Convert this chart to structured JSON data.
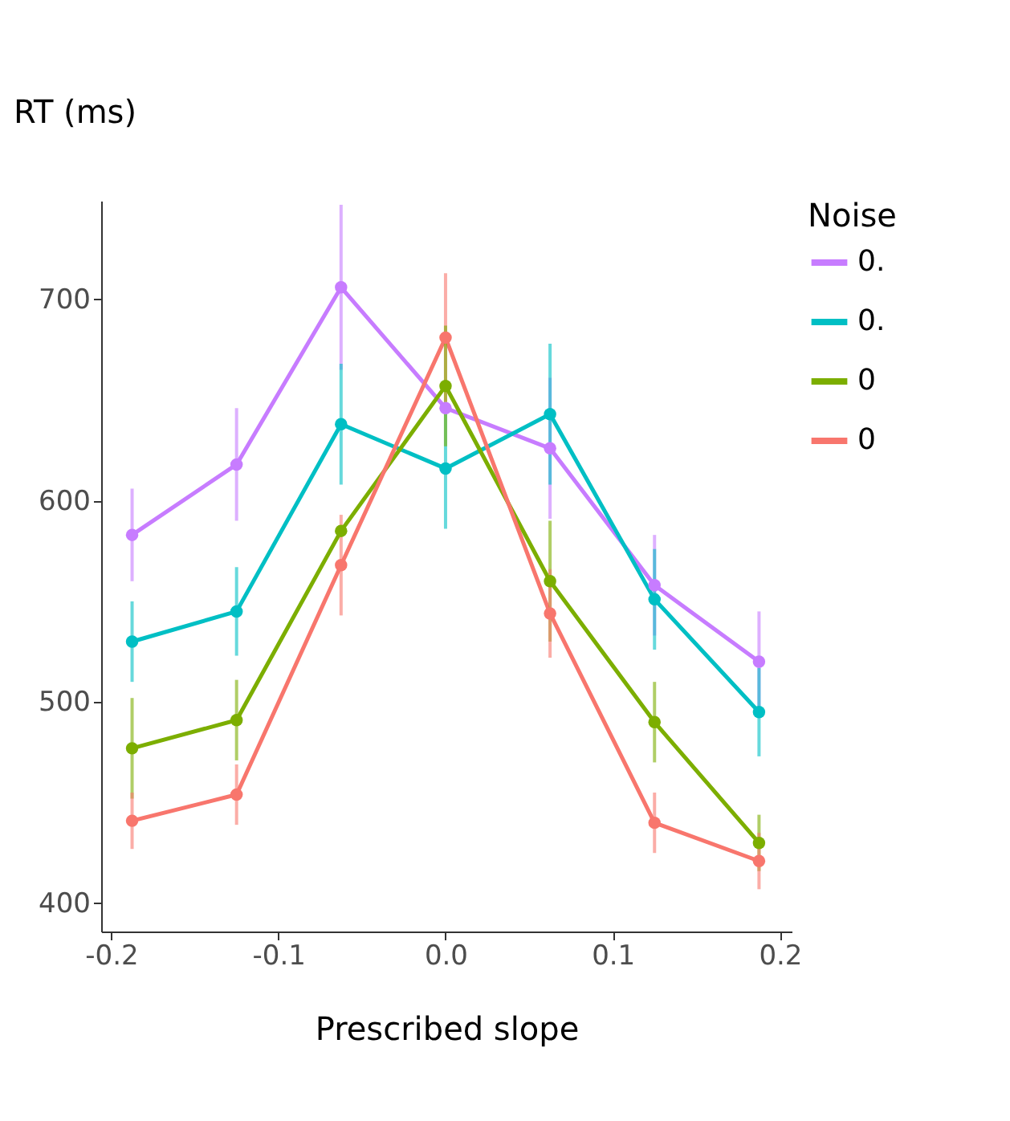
{
  "chart_data": {
    "type": "line",
    "ylabel": "RT (ms)",
    "xlabel": "Prescribed slope",
    "legend_title": "Noise",
    "legend": "right",
    "grid": false,
    "marker": "circle",
    "line_style": "solid",
    "x": [
      -0.1875,
      -0.125,
      -0.0625,
      0,
      0.0625,
      0.125,
      0.1875
    ],
    "xlim": [
      -0.206,
      0.207
    ],
    "xticks": [
      {
        "value": -0.2,
        "label": "-0.2"
      },
      {
        "value": -0.1,
        "label": "-0.1"
      },
      {
        "value": 0,
        "label": "0.0"
      },
      {
        "value": 0.1,
        "label": "0.1"
      },
      {
        "value": 0.2,
        "label": "0.2"
      }
    ],
    "ylim": [
      386,
      749
    ],
    "yticks": [
      400,
      500,
      600,
      700
    ],
    "series": [
      {
        "name": "0.",
        "color": "#c77cff",
        "values": [
          583,
          618,
          706,
          646,
          626,
          558,
          520
        ],
        "errors": [
          23,
          28,
          41,
          null,
          35,
          25,
          25
        ]
      },
      {
        "name": "0.",
        "color": "#00bfc4",
        "values": [
          530,
          545,
          638,
          616,
          643,
          551,
          495
        ],
        "errors": [
          20,
          22,
          30,
          30,
          35,
          25,
          22
        ]
      },
      {
        "name": "0",
        "color": "#7cae00",
        "values": [
          477,
          491,
          585,
          657,
          560,
          490,
          430
        ],
        "errors": [
          25,
          20,
          null,
          30,
          30,
          20,
          14
        ]
      },
      {
        "name": "0",
        "color": "#f8766d",
        "values": [
          441,
          454,
          568,
          681,
          544,
          440,
          421
        ],
        "errors": [
          14,
          15,
          25,
          32,
          22,
          15,
          14
        ]
      }
    ]
  }
}
